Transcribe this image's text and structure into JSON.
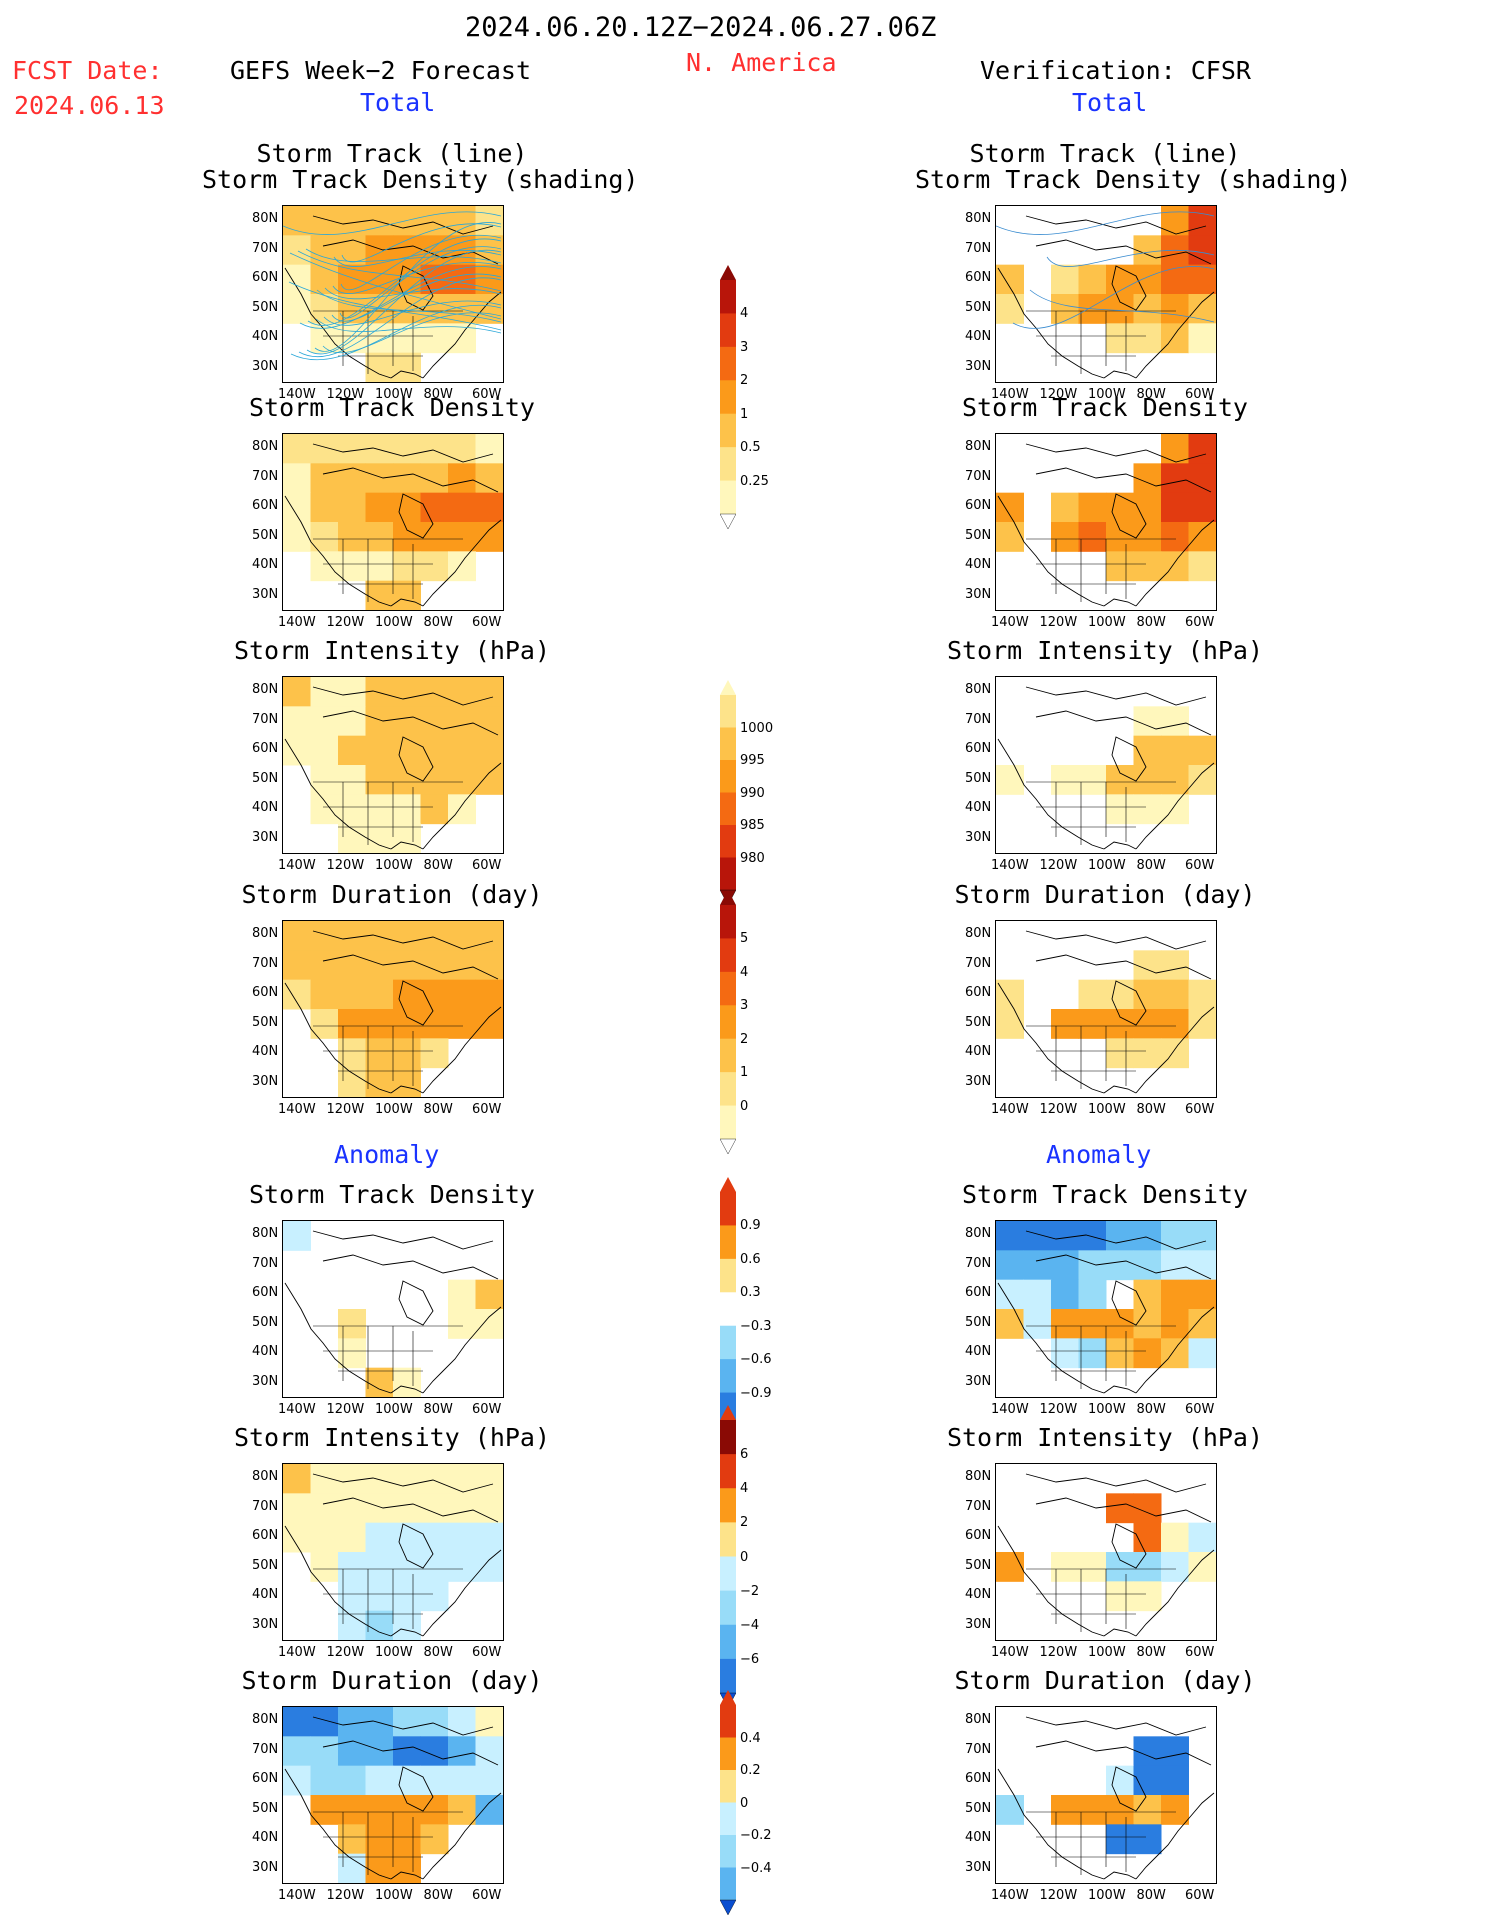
{
  "header": {
    "date_range": "2024.06.20.12Z−2024.06.27.06Z",
    "fcst_label": "FCST Date:",
    "fcst_date": "2024.06.13",
    "left_title": "GEFS Week−2 Forecast",
    "region": "N. America",
    "right_title": "Verification: CFSR",
    "total_left": "Total",
    "total_right": "Total",
    "anomaly_left": "Anomaly",
    "anomaly_right": "Anomaly"
  },
  "panel_titles": {
    "track_line": "Storm Track (line)",
    "track_shading": "Storm Track Density (shading)",
    "density": "Storm Track Density",
    "intensity": "Storm Intensity (hPa)",
    "duration": "Storm Duration (day)"
  },
  "axes": {
    "lat_ticks": [
      "80N",
      "70N",
      "60N",
      "50N",
      "40N",
      "30N"
    ],
    "lon_ticks": [
      "140W",
      "120W",
      "100W",
      "80W",
      "60W"
    ]
  },
  "colorbars": {
    "density_total": [
      "4",
      "3",
      "2",
      "1",
      "0.5",
      "0.25"
    ],
    "intensity_total": [
      "1000",
      "995",
      "990",
      "985",
      "980"
    ],
    "duration_total": [
      "5",
      "4",
      "3",
      "2",
      "1",
      "0"
    ],
    "density_anom": [
      "0.9",
      "0.6",
      "0.3",
      "−0.3",
      "−0.6",
      "−0.9"
    ],
    "intensity_anom": [
      "6",
      "4",
      "2",
      "0",
      "−2",
      "−4",
      "−6"
    ],
    "duration_anom": [
      "0.4",
      "0.2",
      "0",
      "−0.2",
      "−0.4"
    ]
  },
  "colors": {
    "warm": [
      "#fff7bc",
      "#fde38a",
      "#fdc24a",
      "#fb9a1a",
      "#f46a12",
      "#e23b10",
      "#b8150a",
      "#8a0a05"
    ],
    "cool": [
      "#c8f0ff",
      "#98dcf8",
      "#5ab4f0",
      "#2a7de0",
      "#0a4ed0"
    ],
    "title_red": "#ff3030",
    "title_blue": "#1a33ff"
  },
  "chart_data": [
    {
      "type": "heatmap",
      "title": "Storm Track (line) / Storm Track Density (shading)",
      "source": "GEFS Week−2 Forecast",
      "field": "total",
      "pattern": [
        [
          3,
          3,
          3,
          3,
          3,
          3,
          3,
          2
        ],
        [
          2,
          3,
          3,
          4,
          4,
          4,
          4,
          3
        ],
        [
          1,
          3,
          4,
          4,
          4,
          5,
          5,
          4
        ],
        [
          1,
          2,
          3,
          3,
          3,
          3,
          3,
          3
        ],
        [
          0,
          1,
          1,
          1,
          1,
          1,
          1,
          0
        ],
        [
          0,
          0,
          0,
          2,
          2,
          0,
          0,
          0
        ]
      ]
    },
    {
      "type": "heatmap",
      "title": "Storm Track (line) / Storm Track Density (shading)",
      "source": "CFSR",
      "field": "total",
      "pattern": [
        [
          0,
          0,
          0,
          0,
          0,
          0,
          4,
          6
        ],
        [
          0,
          0,
          0,
          0,
          0,
          3,
          5,
          6
        ],
        [
          3,
          0,
          2,
          3,
          4,
          4,
          5,
          5
        ],
        [
          2,
          0,
          3,
          4,
          4,
          3,
          4,
          3
        ],
        [
          0,
          0,
          0,
          0,
          2,
          2,
          3,
          1
        ],
        [
          0,
          0,
          0,
          0,
          0,
          0,
          0,
          0
        ]
      ]
    },
    {
      "type": "heatmap",
      "title": "Storm Track Density",
      "source": "GEFS Week−2 Forecast",
      "field": "total",
      "pattern": [
        [
          2,
          2,
          2,
          2,
          2,
          2,
          2,
          1
        ],
        [
          1,
          3,
          3,
          3,
          3,
          3,
          4,
          3
        ],
        [
          1,
          3,
          3,
          4,
          4,
          5,
          5,
          5
        ],
        [
          1,
          2,
          3,
          3,
          4,
          4,
          4,
          4
        ],
        [
          0,
          1,
          1,
          1,
          2,
          2,
          1,
          0
        ],
        [
          0,
          0,
          0,
          3,
          3,
          0,
          0,
          0
        ]
      ]
    },
    {
      "type": "heatmap",
      "title": "Storm Track Density",
      "source": "CFSR",
      "field": "total",
      "pattern": [
        [
          0,
          0,
          0,
          0,
          0,
          0,
          4,
          6
        ],
        [
          0,
          0,
          0,
          0,
          0,
          4,
          6,
          6
        ],
        [
          4,
          0,
          3,
          4,
          4,
          4,
          6,
          6
        ],
        [
          3,
          0,
          4,
          5,
          4,
          4,
          5,
          4
        ],
        [
          0,
          0,
          0,
          0,
          3,
          3,
          3,
          2
        ],
        [
          0,
          0,
          0,
          0,
          0,
          0,
          0,
          0
        ]
      ]
    },
    {
      "type": "heatmap",
      "title": "Storm Intensity (hPa)",
      "source": "GEFS Week−2 Forecast",
      "field": "total",
      "pattern": [
        [
          3,
          1,
          1,
          3,
          3,
          3,
          3,
          3
        ],
        [
          1,
          1,
          1,
          3,
          3,
          3,
          3,
          3
        ],
        [
          1,
          1,
          3,
          3,
          3,
          3,
          3,
          3
        ],
        [
          0,
          1,
          1,
          3,
          3,
          3,
          3,
          3
        ],
        [
          0,
          1,
          1,
          1,
          1,
          3,
          1,
          0
        ],
        [
          0,
          0,
          1,
          1,
          1,
          0,
          0,
          0
        ]
      ]
    },
    {
      "type": "heatmap",
      "title": "Storm Intensity (hPa)",
      "source": "CFSR",
      "field": "total",
      "pattern": [
        [
          0,
          0,
          0,
          0,
          0,
          0,
          0,
          0
        ],
        [
          0,
          0,
          0,
          0,
          0,
          1,
          1,
          0
        ],
        [
          0,
          0,
          0,
          0,
          0,
          3,
          3,
          3
        ],
        [
          1,
          0,
          1,
          1,
          3,
          3,
          3,
          2
        ],
        [
          0,
          0,
          0,
          0,
          1,
          1,
          1,
          0
        ],
        [
          0,
          0,
          0,
          0,
          0,
          0,
          0,
          0
        ]
      ]
    },
    {
      "type": "heatmap",
      "title": "Storm Duration (day)",
      "source": "GEFS Week−2 Forecast",
      "field": "total",
      "pattern": [
        [
          3,
          3,
          3,
          3,
          3,
          3,
          3,
          3
        ],
        [
          3,
          3,
          3,
          3,
          3,
          3,
          3,
          3
        ],
        [
          2,
          3,
          3,
          3,
          4,
          4,
          4,
          4
        ],
        [
          0,
          2,
          4,
          4,
          4,
          4,
          4,
          4
        ],
        [
          0,
          0,
          2,
          3,
          3,
          2,
          0,
          0
        ],
        [
          0,
          0,
          2,
          3,
          3,
          0,
          0,
          0
        ]
      ]
    },
    {
      "type": "heatmap",
      "title": "Storm Duration (day)",
      "source": "CFSR",
      "field": "total",
      "pattern": [
        [
          0,
          0,
          0,
          0,
          0,
          0,
          0,
          0
        ],
        [
          0,
          0,
          0,
          0,
          0,
          2,
          2,
          0
        ],
        [
          2,
          0,
          0,
          2,
          2,
          3,
          3,
          2
        ],
        [
          2,
          0,
          4,
          4,
          4,
          4,
          4,
          2
        ],
        [
          0,
          0,
          0,
          0,
          2,
          2,
          2,
          0
        ],
        [
          0,
          0,
          0,
          0,
          0,
          0,
          0,
          0
        ]
      ]
    },
    {
      "type": "heatmap",
      "title": "Storm Track Density",
      "source": "GEFS Week−2 Forecast",
      "field": "anomaly",
      "pattern": [
        [
          -1,
          0,
          0,
          0,
          0,
          0,
          0,
          0
        ],
        [
          0,
          0,
          0,
          0,
          0,
          0,
          0,
          0
        ],
        [
          0,
          0,
          0,
          0,
          0,
          0,
          1,
          3
        ],
        [
          0,
          0,
          2,
          0,
          0,
          0,
          1,
          1
        ],
        [
          0,
          0,
          1,
          0,
          0,
          0,
          0,
          0
        ],
        [
          0,
          0,
          0,
          3,
          1,
          0,
          0,
          0
        ]
      ]
    },
    {
      "type": "heatmap",
      "title": "Storm Track Density",
      "source": "CFSR",
      "field": "anomaly",
      "pattern": [
        [
          -4,
          -4,
          -4,
          -4,
          -3,
          -3,
          -2,
          -2
        ],
        [
          -3,
          -3,
          -3,
          -2,
          -2,
          -2,
          -1,
          -1
        ],
        [
          -1,
          -1,
          -3,
          -2,
          0,
          3,
          4,
          4
        ],
        [
          3,
          -1,
          4,
          4,
          4,
          3,
          4,
          3
        ],
        [
          0,
          0,
          -1,
          -2,
          3,
          4,
          3,
          -1
        ],
        [
          0,
          0,
          0,
          0,
          0,
          0,
          0,
          0
        ]
      ]
    },
    {
      "type": "heatmap",
      "title": "Storm Intensity (hPa)",
      "source": "GEFS Week−2 Forecast",
      "field": "anomaly",
      "pattern": [
        [
          3,
          1,
          1,
          1,
          1,
          1,
          1,
          1
        ],
        [
          1,
          1,
          1,
          1,
          1,
          1,
          1,
          1
        ],
        [
          1,
          1,
          1,
          -1,
          -1,
          -1,
          -1,
          -1
        ],
        [
          0,
          1,
          -1,
          -1,
          -1,
          -1,
          -1,
          -1
        ],
        [
          0,
          0,
          -1,
          -1,
          -1,
          -1,
          0,
          0
        ],
        [
          0,
          0,
          -1,
          -2,
          -1,
          0,
          0,
          0
        ]
      ]
    },
    {
      "type": "heatmap",
      "title": "Storm Intensity (hPa)",
      "source": "CFSR",
      "field": "anomaly",
      "pattern": [
        [
          0,
          0,
          0,
          0,
          0,
          0,
          0,
          0
        ],
        [
          0,
          0,
          0,
          0,
          5,
          5,
          0,
          0
        ],
        [
          0,
          0,
          0,
          0,
          0,
          5,
          1,
          -1
        ],
        [
          4,
          0,
          1,
          1,
          -2,
          -2,
          -1,
          1
        ],
        [
          0,
          0,
          0,
          0,
          1,
          1,
          0,
          0
        ],
        [
          0,
          0,
          0,
          0,
          0,
          0,
          0,
          0
        ]
      ]
    },
    {
      "type": "heatmap",
      "title": "Storm Duration (day)",
      "source": "GEFS Week−2 Forecast",
      "field": "anomaly",
      "pattern": [
        [
          -4,
          -4,
          -3,
          -3,
          -2,
          -2,
          -1,
          1
        ],
        [
          -2,
          -2,
          -3,
          -3,
          -4,
          -4,
          -3,
          -1
        ],
        [
          -1,
          -2,
          -2,
          -1,
          -1,
          -1,
          -1,
          -1
        ],
        [
          0,
          4,
          4,
          4,
          4,
          4,
          3,
          -3
        ],
        [
          0,
          0,
          3,
          4,
          4,
          3,
          0,
          0
        ],
        [
          0,
          0,
          -1,
          4,
          4,
          0,
          0,
          0
        ]
      ]
    },
    {
      "type": "heatmap",
      "title": "Storm Duration (day)",
      "source": "CFSR",
      "field": "anomaly",
      "pattern": [
        [
          0,
          0,
          0,
          0,
          0,
          0,
          0,
          0
        ],
        [
          0,
          0,
          0,
          0,
          0,
          -4,
          -4,
          0
        ],
        [
          0,
          0,
          0,
          0,
          -1,
          -4,
          -4,
          0
        ],
        [
          -2,
          0,
          4,
          4,
          4,
          3,
          4,
          0
        ],
        [
          0,
          0,
          0,
          0,
          -4,
          -4,
          0,
          0
        ],
        [
          0,
          0,
          0,
          0,
          0,
          0,
          0,
          0
        ]
      ]
    }
  ]
}
